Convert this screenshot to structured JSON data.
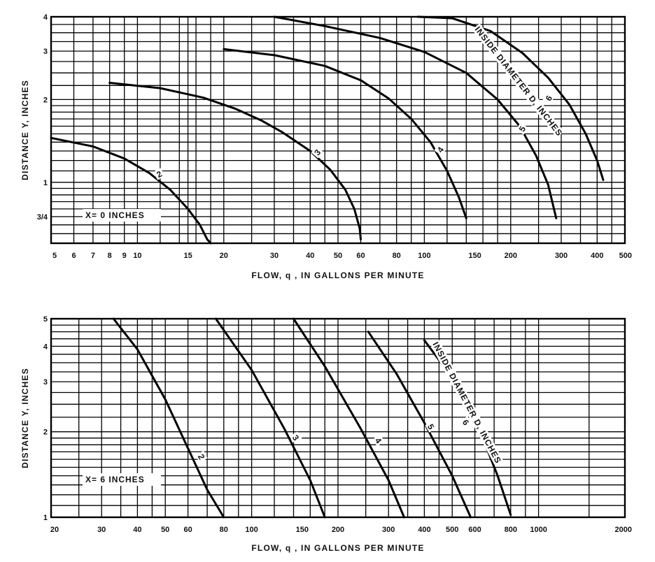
{
  "chart_data": [
    {
      "type": "line",
      "title": "",
      "xlabel": "FLOW, q , IN GALLONS PER MINUTE",
      "ylabel": "DISTANCE Y, INCHES",
      "x_scale": "log",
      "y_scale": "log",
      "xlim": [
        5,
        500
      ],
      "ylim": [
        0.6,
        4
      ],
      "x_tick_labels": [
        "5",
        "6",
        "7",
        "8",
        "9",
        "10",
        "15",
        "20",
        "30",
        "40",
        "50",
        "60",
        "80",
        "100",
        "150",
        "200",
        "300",
        "400",
        "500"
      ],
      "y_tick_labels": [
        "3/4",
        "1",
        "2",
        "3",
        "4"
      ],
      "grid": true,
      "annotation": "X= 0 INCHES",
      "diameter_label": "INSIDE DIAMETER D, INCHES",
      "series": [
        {
          "name": "2",
          "x": [
            5,
            7,
            9,
            11,
            13,
            15,
            16.5,
            17.5,
            18
          ],
          "y": [
            1.45,
            1.35,
            1.22,
            1.08,
            0.94,
            0.8,
            0.7,
            0.62,
            0.6
          ]
        },
        {
          "name": "3",
          "x": [
            8,
            12,
            17,
            22,
            27,
            32,
            40,
            47,
            53,
            57,
            59.5,
            60
          ],
          "y": [
            2.3,
            2.2,
            2.03,
            1.85,
            1.68,
            1.52,
            1.3,
            1.11,
            0.94,
            0.8,
            0.68,
            0.62
          ]
        },
        {
          "name": "4",
          "x": [
            20,
            30,
            45,
            60,
            75,
            90,
            105,
            120,
            132,
            140
          ],
          "y": [
            3.05,
            2.9,
            2.65,
            2.35,
            2.02,
            1.7,
            1.4,
            1.1,
            0.88,
            0.74
          ]
        },
        {
          "name": "5",
          "x": [
            30,
            45,
            70,
            100,
            140,
            180,
            215,
            245,
            270,
            288
          ],
          "y": [
            4,
            3.7,
            3.35,
            2.98,
            2.5,
            2.0,
            1.6,
            1.25,
            0.98,
            0.74
          ]
        },
        {
          "name": "6",
          "x": [
            95,
            125,
            170,
            220,
            270,
            320,
            365,
            400,
            420
          ],
          "y": [
            4,
            3.95,
            3.55,
            2.95,
            2.4,
            1.92,
            1.5,
            1.2,
            1.02
          ]
        }
      ]
    },
    {
      "type": "line",
      "title": "",
      "xlabel": "FLOW, q , IN GALLONS PER MINUTE",
      "ylabel": "DISTANCE Y, INCHES",
      "x_scale": "log",
      "y_scale": "log",
      "xlim": [
        20,
        2000
      ],
      "ylim": [
        1,
        5
      ],
      "x_tick_labels": [
        "20",
        "30",
        "40",
        "50",
        "60",
        "80",
        "100",
        "150",
        "200",
        "300",
        "400",
        "500",
        "600",
        "800",
        "1000",
        "2000"
      ],
      "y_tick_labels": [
        "1",
        "2",
        "3",
        "4",
        "5"
      ],
      "grid": true,
      "annotation": "X= 6 INCHES",
      "diameter_label": "INSIDE DIAMETER D, INCHES",
      "series": [
        {
          "name": "2",
          "x": [
            33,
            40,
            50,
            60,
            70,
            80
          ],
          "y": [
            5,
            3.9,
            2.6,
            1.75,
            1.25,
            1.0
          ]
        },
        {
          "name": "3",
          "x": [
            75,
            100,
            130,
            160,
            180
          ],
          "y": [
            5,
            3.3,
            2.05,
            1.35,
            1.0
          ]
        },
        {
          "name": "4",
          "x": [
            140,
            180,
            240,
            300,
            340
          ],
          "y": [
            5,
            3.4,
            2.05,
            1.35,
            1.0
          ]
        },
        {
          "name": "5",
          "x": [
            255,
            320,
            400,
            500,
            580
          ],
          "y": [
            4.5,
            3.2,
            2.15,
            1.4,
            1.0
          ]
        },
        {
          "name": "6",
          "x": [
            400,
            500,
            620,
            720,
            800
          ],
          "y": [
            4.2,
            3.1,
            2.05,
            1.4,
            1.02
          ]
        }
      ]
    }
  ]
}
